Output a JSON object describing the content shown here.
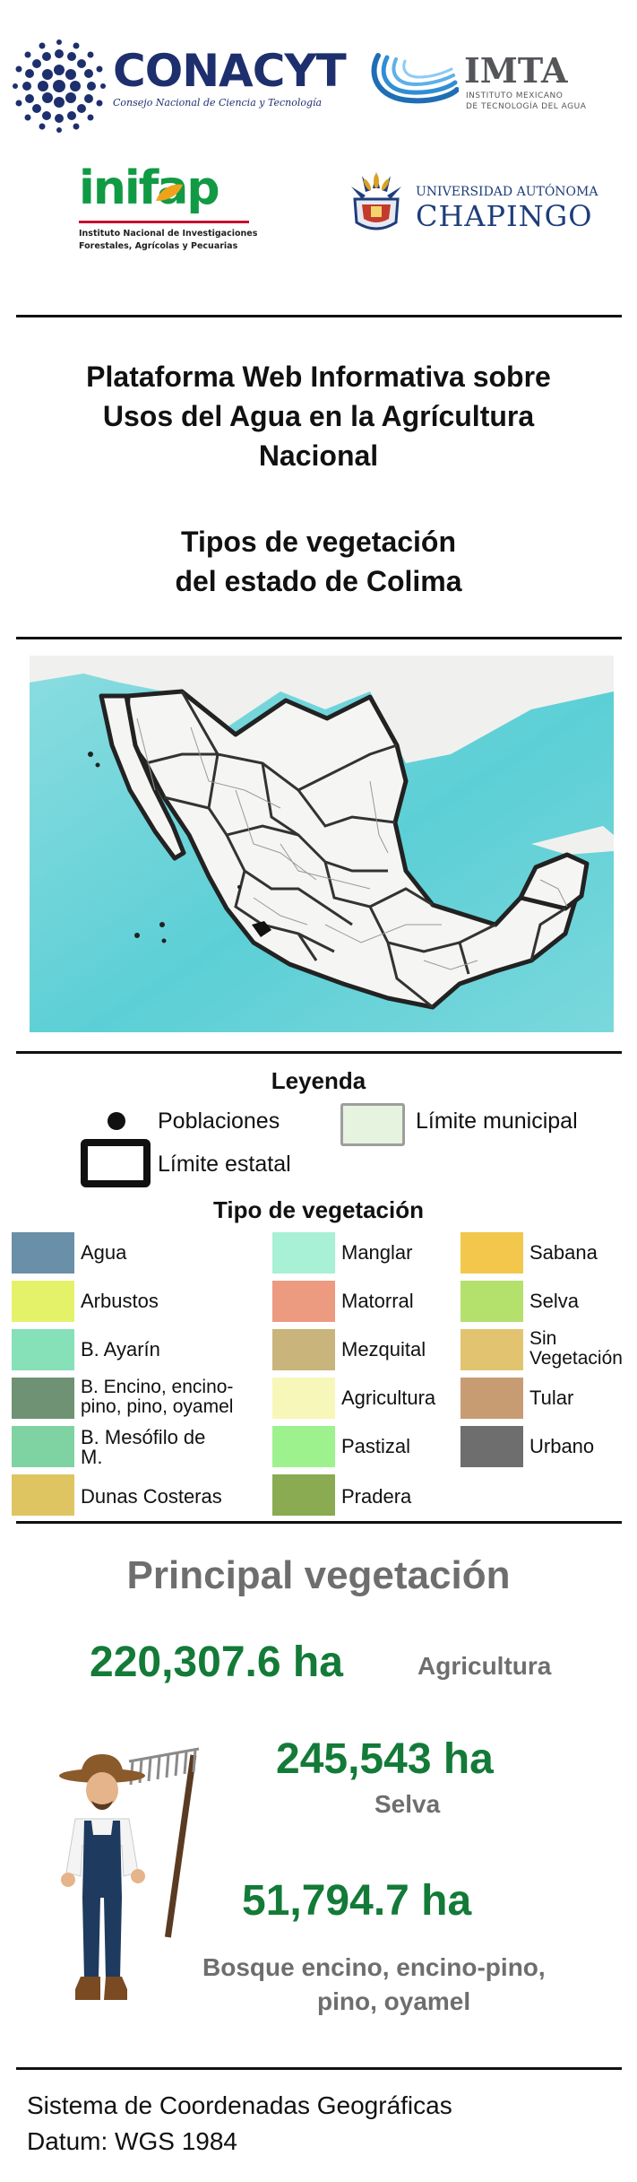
{
  "logos": {
    "conacyt": {
      "name": "CONACYT",
      "subtitle": "Consejo Nacional de Ciencia y Tecnología"
    },
    "imta": {
      "name": "IMTA",
      "subtitle_line1": "INSTITUTO MEXICANO",
      "subtitle_line2": "DE TECNOLOGÍA DEL AGUA"
    },
    "inifap": {
      "name": "inifap",
      "subtitle_line1": "Instituto Nacional de Investigaciones",
      "subtitle_line2": "Forestales, Agrícolas y Pecuarias"
    },
    "chapingo": {
      "top": "UNIVERSIDAD AUTÓNOMA",
      "name": "CHAPINGO"
    }
  },
  "header": {
    "title_lines": [
      "Plataforma Web Informativa sobre",
      "Usos del Agua en la Agrícultura",
      "Nacional"
    ],
    "subtitle_lines": [
      "Tipos de vegetación",
      "del estado de Colima"
    ]
  },
  "legend": {
    "title": "Leyenda",
    "poblaciones": "Poblaciones",
    "limite_municipal": "Límite municipal",
    "limite_estatal": "Límite estatal",
    "veg_title": "Tipo de vegetación",
    "items": [
      {
        "label": "Agua",
        "color": "#6a8fa8"
      },
      {
        "label": "Arbustos",
        "color": "#e4f26a"
      },
      {
        "label": "B. Ayarín",
        "color": "#86e0b8"
      },
      {
        "label": "B. Encino, encino-pino, pino, oyamel",
        "color": "#6e9273"
      },
      {
        "label": "B. Mesófilo de M.",
        "color": "#7fd3a2"
      },
      {
        "label": "Dunas Costeras",
        "color": "#dfc462"
      },
      {
        "label": "Manglar",
        "color": "#a8f0d6"
      },
      {
        "label": "Matorral",
        "color": "#ec9a80"
      },
      {
        "label": "Mezquital",
        "color": "#c9b57c"
      },
      {
        "label": "Agricultura",
        "color": "#f7f7b9"
      },
      {
        "label": "Pastizal",
        "color": "#9ef28e"
      },
      {
        "label": "Pradera",
        "color": "#8aab52"
      },
      {
        "label": "Sabana",
        "color": "#f2c74c"
      },
      {
        "label": "Selva",
        "color": "#b4e06c"
      },
      {
        "label": "Sin Vegetación",
        "color": "#e2c470"
      },
      {
        "label": "Tular",
        "color": "#c89c72"
      },
      {
        "label": "Urbano",
        "color": "#6e6e6e"
      }
    ]
  },
  "stats": {
    "heading": "Principal vegetación",
    "agricultura_value": "220,307.6 ha",
    "agricultura_label": "Agricultura",
    "selva_value": "245,543 ha",
    "selva_label": "Selva",
    "bosque_value": "51,794.7 ha",
    "bosque_label_line1": "Bosque encino, encino-pino,",
    "bosque_label_line2": "pino, oyamel"
  },
  "footer": {
    "line1": "Sistema de Coordenadas Geográficas",
    "line2": "Datum: WGS 1984"
  }
}
